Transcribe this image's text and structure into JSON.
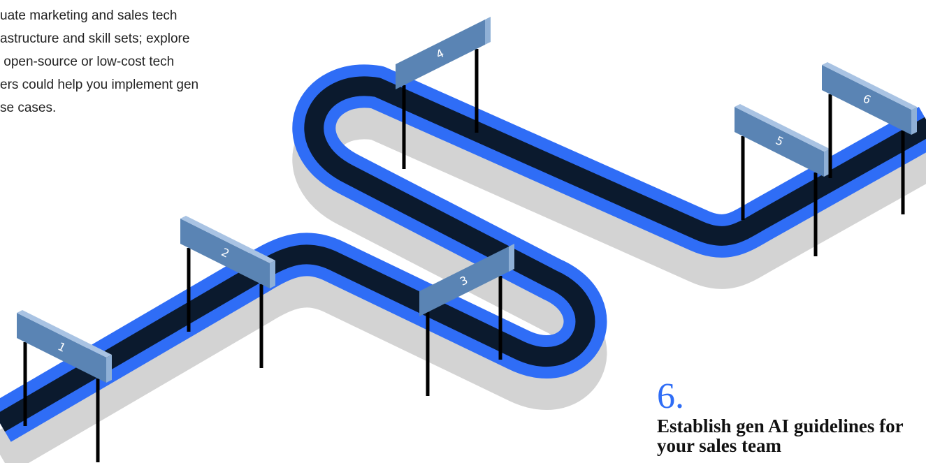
{
  "intro": {
    "lines": [
      "uate marketing and sales tech",
      "astructure and skill sets; explore",
      " open-source or low-cost tech",
      "ers could help you implement gen",
      "se cases."
    ]
  },
  "hurdles": [
    "1",
    "2",
    "3",
    "4",
    "5",
    "6"
  ],
  "step": {
    "number": "6.",
    "title_lines": [
      "Establish gen AI guidelines for",
      "your sales team"
    ]
  }
}
